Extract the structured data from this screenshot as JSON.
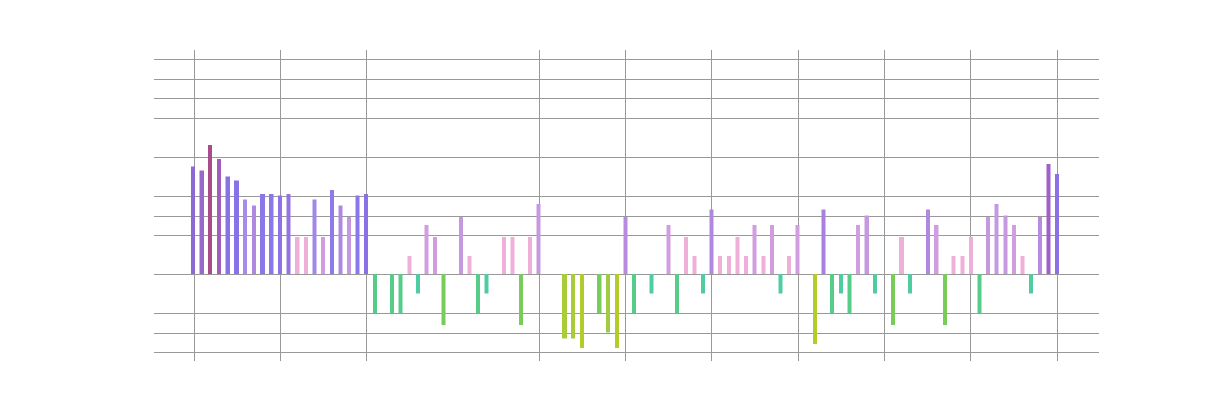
{
  "chart_data": {
    "type": "bar",
    "title": "",
    "xlabel": "",
    "ylabel": "",
    "grid": true,
    "legend": "none",
    "ylim": [
      -4.25,
      11
    ],
    "xlim": [
      -4.5,
      104.5
    ],
    "y_gridlines": [
      -4,
      -3,
      -2,
      0,
      2,
      3,
      4,
      5,
      6,
      7,
      8,
      9,
      10,
      11
    ],
    "x_gridlines": [
      0,
      10,
      20,
      30,
      40,
      50,
      60,
      70,
      80,
      90,
      100
    ],
    "palette": {
      "blue": "#8175e8",
      "purple": "#a25cc0",
      "violet": "#b385e0",
      "lavender": "#c598e0",
      "pink": "#efafd9",
      "orchid": "#d29ce0",
      "orange": "#cf6a1c",
      "gold": "#c79a1c",
      "yellow": "#cdb71a",
      "red": "#cc2e2e",
      "rose": "#c4435c",
      "magenta": "#b24e96",
      "green": "#55cc88",
      "lime": "#a8cc3a",
      "teal": "#4fcca0"
    },
    "bars": [
      {
        "x": 0,
        "value": 5.5,
        "color": "#8c6ad6"
      },
      {
        "x": 1,
        "value": 5.3,
        "color": "#9868cc"
      },
      {
        "x": 2,
        "value": 6.6,
        "color": "#a84c8c"
      },
      {
        "x": 3,
        "value": 5.9,
        "color": "#a45cb8"
      },
      {
        "x": 4,
        "value": 5.0,
        "color": "#8a72e6"
      },
      {
        "x": 5,
        "value": 4.8,
        "color": "#8872e8"
      },
      {
        "x": 6,
        "value": 3.8,
        "color": "#a88ae8"
      },
      {
        "x": 7,
        "value": 3.5,
        "color": "#b088e0"
      },
      {
        "x": 8,
        "value": 4.1,
        "color": "#8a78e8"
      },
      {
        "x": 9,
        "value": 4.1,
        "color": "#8a78e8"
      },
      {
        "x": 10,
        "value": 4.0,
        "color": "#8e72e6"
      },
      {
        "x": 11,
        "value": 4.1,
        "color": "#9474e0"
      },
      {
        "x": 12,
        "value": 1.9,
        "color": "#efafd9"
      },
      {
        "x": 13,
        "value": 1.9,
        "color": "#efafd9"
      },
      {
        "x": 14,
        "value": 3.8,
        "color": "#a088e8"
      },
      {
        "x": 15,
        "value": 1.9,
        "color": "#d29ce0"
      },
      {
        "x": 16,
        "value": 4.3,
        "color": "#8e7ae8"
      },
      {
        "x": 17,
        "value": 3.5,
        "color": "#b088e0"
      },
      {
        "x": 18,
        "value": 2.9,
        "color": "#c598e0"
      },
      {
        "x": 19,
        "value": 4.0,
        "color": "#8a78e8"
      },
      {
        "x": 20,
        "value": 4.1,
        "color": "#8a72e6"
      },
      {
        "x": 21,
        "value": -2.0,
        "color": "#55cc88"
      },
      {
        "x": 22,
        "value": 0,
        "color": "#ffffff"
      },
      {
        "x": 23,
        "value": -2.0,
        "color": "#55cc88"
      },
      {
        "x": 24,
        "value": -2.0,
        "color": "#55cc88"
      },
      {
        "x": 25,
        "value": 0.9,
        "color": "#efafd9"
      },
      {
        "x": 26,
        "value": -1.0,
        "color": "#4fcca0"
      },
      {
        "x": 27,
        "value": 2.5,
        "color": "#d29ce0"
      },
      {
        "x": 28,
        "value": 1.9,
        "color": "#d29ce0"
      },
      {
        "x": 29,
        "value": -2.6,
        "color": "#78cc5a"
      },
      {
        "x": 30,
        "value": 0,
        "color": "#ffffff"
      },
      {
        "x": 31,
        "value": 2.9,
        "color": "#c598e0"
      },
      {
        "x": 32,
        "value": 0.9,
        "color": "#efafd9"
      },
      {
        "x": 33,
        "value": -2.0,
        "color": "#55cc88"
      },
      {
        "x": 34,
        "value": -1.0,
        "color": "#4fcca0"
      },
      {
        "x": 35,
        "value": 0,
        "color": "#ffffff"
      },
      {
        "x": 36,
        "value": 1.9,
        "color": "#efafd9"
      },
      {
        "x": 37,
        "value": 1.9,
        "color": "#efafd9"
      },
      {
        "x": 38,
        "value": -2.6,
        "color": "#78cc5a"
      },
      {
        "x": 39,
        "value": 1.9,
        "color": "#efafd9"
      },
      {
        "x": 40,
        "value": 3.6,
        "color": "#c598e0"
      },
      {
        "x": 41,
        "value": 0,
        "color": "#ffffff"
      },
      {
        "x": 42,
        "value": 0,
        "color": "#ffffff"
      },
      {
        "x": 43,
        "value": -3.3,
        "color": "#a8cc3a"
      },
      {
        "x": 44,
        "value": -3.3,
        "color": "#a8cc3a"
      },
      {
        "x": 45,
        "value": -3.8,
        "color": "#b4cc2a"
      },
      {
        "x": 46,
        "value": 0,
        "color": "#ffffff"
      },
      {
        "x": 47,
        "value": -2.0,
        "color": "#78cc5a"
      },
      {
        "x": 48,
        "value": -3.0,
        "color": "#a0cc44"
      },
      {
        "x": 49,
        "value": -3.8,
        "color": "#b4cc2a"
      },
      {
        "x": 50,
        "value": 2.9,
        "color": "#b88ae0"
      },
      {
        "x": 51,
        "value": -2.0,
        "color": "#55cc88"
      },
      {
        "x": 52,
        "value": 0,
        "color": "#ffffff"
      },
      {
        "x": 53,
        "value": -1.0,
        "color": "#4fcca0"
      },
      {
        "x": 54,
        "value": 0,
        "color": "#ffffff"
      },
      {
        "x": 55,
        "value": 2.5,
        "color": "#d29ce0"
      },
      {
        "x": 56,
        "value": -2.0,
        "color": "#55cc88"
      },
      {
        "x": 57,
        "value": 1.9,
        "color": "#efafd9"
      },
      {
        "x": 58,
        "value": 0.9,
        "color": "#efafd9"
      },
      {
        "x": 59,
        "value": -1.0,
        "color": "#4fcca0"
      },
      {
        "x": 60,
        "value": 3.3,
        "color": "#b088e0"
      },
      {
        "x": 61,
        "value": 0.9,
        "color": "#efafd9"
      },
      {
        "x": 62,
        "value": 0.9,
        "color": "#efafd9"
      },
      {
        "x": 63,
        "value": 1.9,
        "color": "#efafd9"
      },
      {
        "x": 64,
        "value": 0.9,
        "color": "#efafd9"
      },
      {
        "x": 65,
        "value": 2.5,
        "color": "#d29ce0"
      },
      {
        "x": 66,
        "value": 0.9,
        "color": "#efafd9"
      },
      {
        "x": 67,
        "value": 2.5,
        "color": "#d29ce0"
      },
      {
        "x": 68,
        "value": -1.0,
        "color": "#4fcca0"
      },
      {
        "x": 69,
        "value": 0.9,
        "color": "#efafd9"
      },
      {
        "x": 70,
        "value": 2.5,
        "color": "#d29ce0"
      },
      {
        "x": 71,
        "value": 0,
        "color": "#ffffff"
      },
      {
        "x": 72,
        "value": -3.6,
        "color": "#b4cc2a"
      },
      {
        "x": 73,
        "value": 3.3,
        "color": "#a880e0"
      },
      {
        "x": 74,
        "value": -2.0,
        "color": "#55cc88"
      },
      {
        "x": 75,
        "value": -1.0,
        "color": "#4fcca0"
      },
      {
        "x": 76,
        "value": -2.0,
        "color": "#55cc88"
      },
      {
        "x": 77,
        "value": 2.5,
        "color": "#d29ce0"
      },
      {
        "x": 78,
        "value": 3.0,
        "color": "#c598e0"
      },
      {
        "x": 79,
        "value": -1.0,
        "color": "#4fcca0"
      },
      {
        "x": 80,
        "value": 0,
        "color": "#ffffff"
      },
      {
        "x": 81,
        "value": -2.6,
        "color": "#78cc5a"
      },
      {
        "x": 82,
        "value": 1.9,
        "color": "#efafd9"
      },
      {
        "x": 83,
        "value": -1.0,
        "color": "#4fcca0"
      },
      {
        "x": 84,
        "value": 0,
        "color": "#ffffff"
      },
      {
        "x": 85,
        "value": 3.3,
        "color": "#b088e0"
      },
      {
        "x": 86,
        "value": 2.5,
        "color": "#d29ce0"
      },
      {
        "x": 87,
        "value": -2.6,
        "color": "#78cc5a"
      },
      {
        "x": 88,
        "value": 0.9,
        "color": "#efafd9"
      },
      {
        "x": 89,
        "value": 0.9,
        "color": "#efafd9"
      },
      {
        "x": 90,
        "value": 1.9,
        "color": "#efafd9"
      },
      {
        "x": 91,
        "value": -2.0,
        "color": "#55cc88"
      },
      {
        "x": 92,
        "value": 2.9,
        "color": "#c598e0"
      },
      {
        "x": 93,
        "value": 3.6,
        "color": "#c598e0"
      },
      {
        "x": 94,
        "value": 3.0,
        "color": "#c598e0"
      },
      {
        "x": 95,
        "value": 2.5,
        "color": "#d29ce0"
      },
      {
        "x": 96,
        "value": 0.9,
        "color": "#efafd9"
      },
      {
        "x": 97,
        "value": -1.0,
        "color": "#4fcca0"
      },
      {
        "x": 98,
        "value": 2.9,
        "color": "#b88ae0"
      },
      {
        "x": 99,
        "value": 5.6,
        "color": "#a060c8"
      },
      {
        "x": 100,
        "value": 5.1,
        "color": "#8a72e6"
      }
    ]
  }
}
